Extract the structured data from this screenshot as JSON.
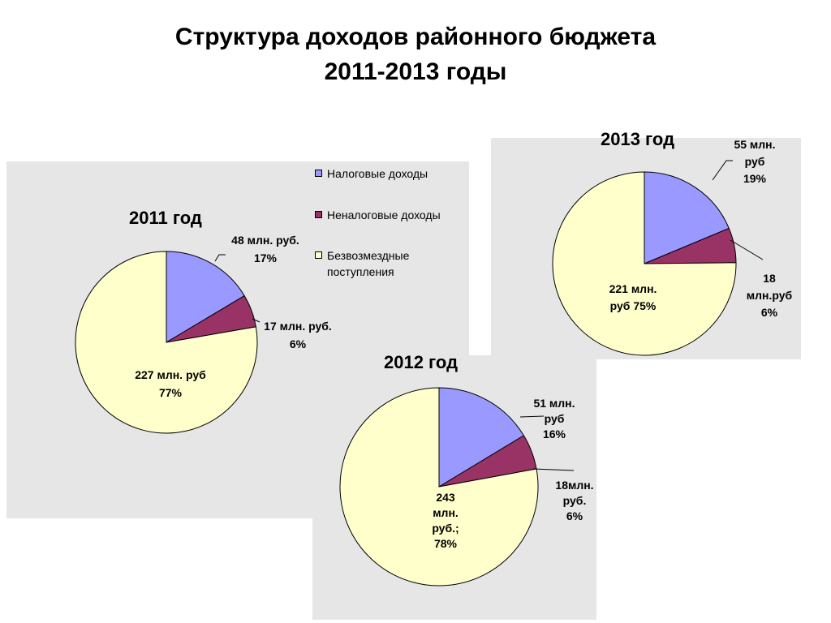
{
  "title": {
    "line1": "Структура доходов районного бюджета",
    "line2": "2011-2013 годы"
  },
  "colors": {
    "tax": "#9999ff",
    "nontax": "#993366",
    "gratuitous": "#ffffcc",
    "panel": "#e6e6e6"
  },
  "legend": [
    {
      "label": "Налоговые доходы",
      "color": "#9999ff"
    },
    {
      "label": "Неналоговые доходы",
      "color": "#993366"
    },
    {
      "label": "Безвозмездные поступления",
      "color": "#ffffcc"
    }
  ],
  "chart_data": [
    {
      "type": "pie",
      "title": "2011 год",
      "labels": [
        "Налоговые доходы",
        "Неналоговые доходы",
        "Безвозмездные поступления"
      ],
      "values": [
        48,
        17,
        227
      ],
      "percents": [
        17,
        6,
        77
      ],
      "data_labels": [
        [
          "48 млн. руб.",
          "17%"
        ],
        [
          "17 млн. руб.",
          "6%"
        ],
        [
          "227 млн. руб",
          "77%"
        ]
      ]
    },
    {
      "type": "pie",
      "title": "2012 год",
      "labels": [
        "Налоговые доходы",
        "Неналоговые доходы",
        "Безвозмездные поступления"
      ],
      "values": [
        51,
        18,
        243
      ],
      "percents": [
        16,
        6,
        78
      ],
      "data_labels": [
        [
          "51 млн.",
          "руб",
          "16%"
        ],
        [
          "18млн.",
          "руб.",
          "6%"
        ],
        [
          "243",
          "млн.",
          "руб.;",
          "78%"
        ]
      ]
    },
    {
      "type": "pie",
      "title": "2013 год",
      "labels": [
        "Налоговые доходы",
        "Неналоговые доходы",
        "Безвозмездные поступления"
      ],
      "values": [
        55,
        18,
        221
      ],
      "percents": [
        19,
        6,
        75
      ],
      "data_labels": [
        [
          "55 млн.",
          "руб",
          "19%"
        ],
        [
          "18",
          "млн.руб",
          "6%"
        ],
        [
          "221 млн.",
          "руб 75%"
        ]
      ]
    }
  ]
}
